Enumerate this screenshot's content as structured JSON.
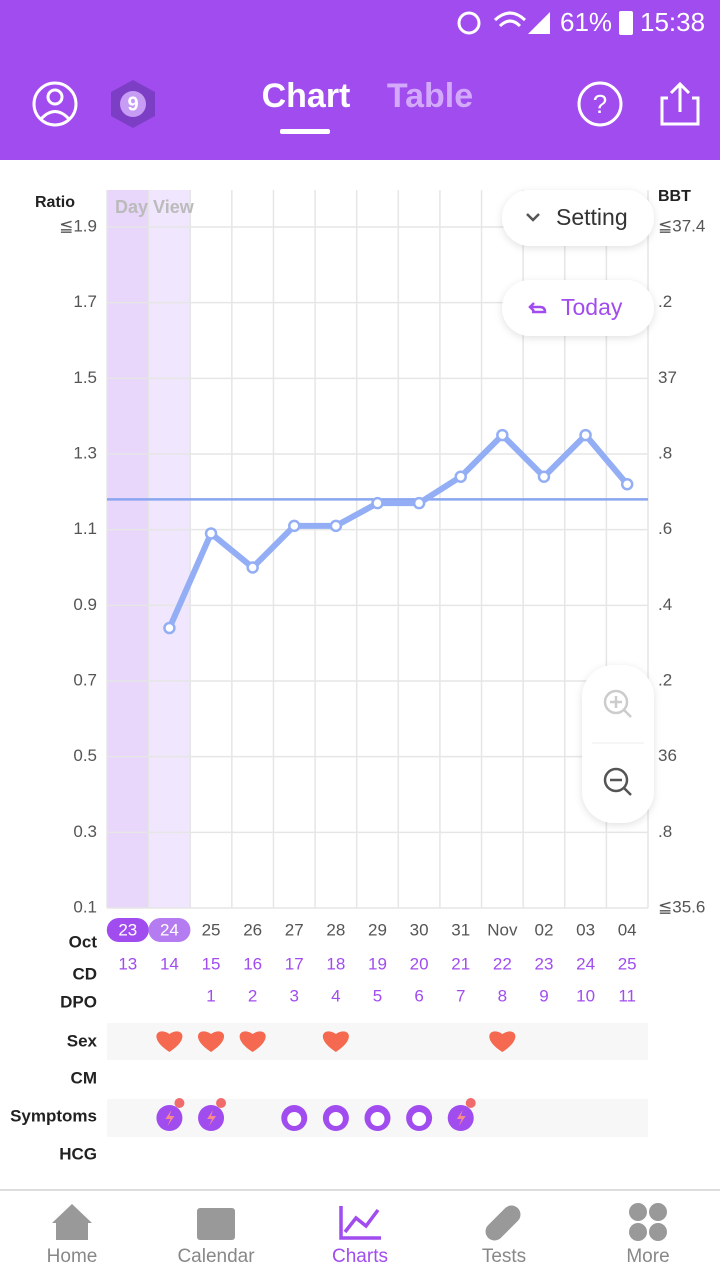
{
  "status_bar": {
    "battery": "61%",
    "time": "15:38"
  },
  "header": {
    "tabs": [
      "Chart",
      "Table"
    ],
    "badge": "9"
  },
  "controls": {
    "setting": "Setting",
    "today": "Today"
  },
  "chart_data": {
    "type": "line",
    "y_label": "Ratio",
    "y2_label": "BBT",
    "view_label": "Day View",
    "categories": [
      "23",
      "24",
      "25",
      "26",
      "27",
      "28",
      "29",
      "30",
      "31",
      "Nov",
      "02",
      "03",
      "04"
    ],
    "ylim": [
      0.1,
      1.9
    ],
    "yticks": [
      {
        "value": 1.9,
        "label": "≦1.9"
      },
      1.7,
      1.5,
      1.3,
      1.1,
      0.9,
      0.7,
      0.5,
      0.3,
      0.1
    ],
    "y2lim": [
      35.6,
      37.4
    ],
    "y2ticks": [
      {
        "value": 37.4,
        "label": "≦37.4"
      },
      {
        "value": 37.2,
        "label": ".2"
      },
      37,
      {
        "value": 36.8,
        "label": ".8"
      },
      {
        "value": 36.6,
        "label": ".6"
      },
      {
        "value": 36.4,
        "label": ".4"
      },
      {
        "value": 36.2,
        "label": ".2"
      },
      36,
      {
        "value": 35.8,
        "label": ".8"
      },
      {
        "value": 35.6,
        "label": "≦35.6"
      }
    ],
    "series": [
      {
        "color": "#93aef5",
        "axis": "y2",
        "values": [
          null,
          36.34,
          36.59,
          36.5,
          36.61,
          36.61,
          36.67,
          36.67,
          36.74,
          36.85,
          36.74,
          36.85,
          36.72
        ]
      }
    ],
    "coverline": 36.68,
    "grid": true
  },
  "rows": {
    "month": "Oct",
    "labels": [
      "CD",
      "DPO",
      "Sex",
      "CM",
      "Symptoms",
      "HCG"
    ],
    "cd": [
      13,
      14,
      15,
      16,
      17,
      18,
      19,
      20,
      21,
      22,
      23,
      24,
      25
    ],
    "dpo": [
      null,
      null,
      1,
      2,
      3,
      4,
      5,
      6,
      7,
      8,
      9,
      10,
      11
    ],
    "sex": [
      false,
      true,
      true,
      true,
      false,
      true,
      false,
      false,
      false,
      true,
      false,
      false,
      false
    ]
  },
  "nav": [
    "Home",
    "Calendar",
    "Charts",
    "Tests",
    "More"
  ]
}
